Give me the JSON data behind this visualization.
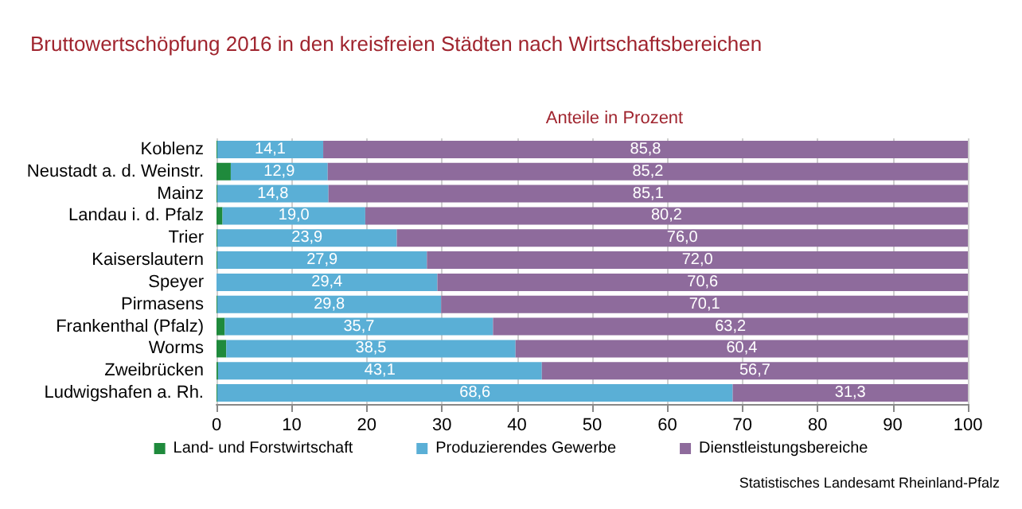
{
  "chart_data": {
    "type": "bar",
    "orientation": "horizontal",
    "stacked": true,
    "title": "Bruttowertschöpfung 2016 in den kreisfreien Städten nach Wirtschaftsbereichen",
    "subtitle": "Anteile in Prozent",
    "categories": [
      "Koblenz",
      "Neustadt a. d. Weinstr.",
      "Mainz",
      "Landau i. d. Pfalz",
      "Trier",
      "Kaiserslautern",
      "Speyer",
      "Pirmasens",
      "Frankenthal (Pfalz)",
      "Worms",
      "Zweibrücken",
      "Ludwigshafen a. Rh."
    ],
    "series": [
      {
        "name": "Land- und Forstwirtschaft",
        "color": "#1f8a3c",
        "values": [
          0.1,
          1.9,
          0.1,
          0.8,
          0.1,
          0.1,
          0.0,
          0.1,
          1.1,
          1.3,
          0.2,
          0.1
        ]
      },
      {
        "name": "Produzierendes Gewerbe",
        "color": "#5aafd6",
        "values": [
          14.1,
          12.9,
          14.8,
          19.0,
          23.9,
          27.9,
          29.4,
          29.8,
          35.7,
          38.5,
          43.1,
          68.6
        ],
        "value_labels": [
          "14,1",
          "12,9",
          "14,8",
          "19,0",
          "23,9",
          "27,9",
          "29,4",
          "29,8",
          "35,7",
          "38,5",
          "43,1",
          "68,6"
        ]
      },
      {
        "name": "Dienstleistungsbereiche",
        "color": "#8e6b9c",
        "values": [
          85.8,
          85.2,
          85.1,
          80.2,
          76.0,
          72.0,
          70.6,
          70.1,
          63.2,
          60.4,
          56.7,
          31.3
        ],
        "value_labels": [
          "85,8",
          "85,2",
          "85,1",
          "80,2",
          "76,0",
          "72,0",
          "70,6",
          "70,1",
          "63,2",
          "60,4",
          "56,7",
          "31,3"
        ]
      }
    ],
    "xlim": [
      0,
      100
    ],
    "xticks": [
      0,
      10,
      20,
      30,
      40,
      50,
      60,
      70,
      80,
      90,
      100
    ],
    "grid": "x",
    "legend": "bottom",
    "annotations": [
      "Statistisches Landesamt Rheinland-Pfalz"
    ]
  }
}
